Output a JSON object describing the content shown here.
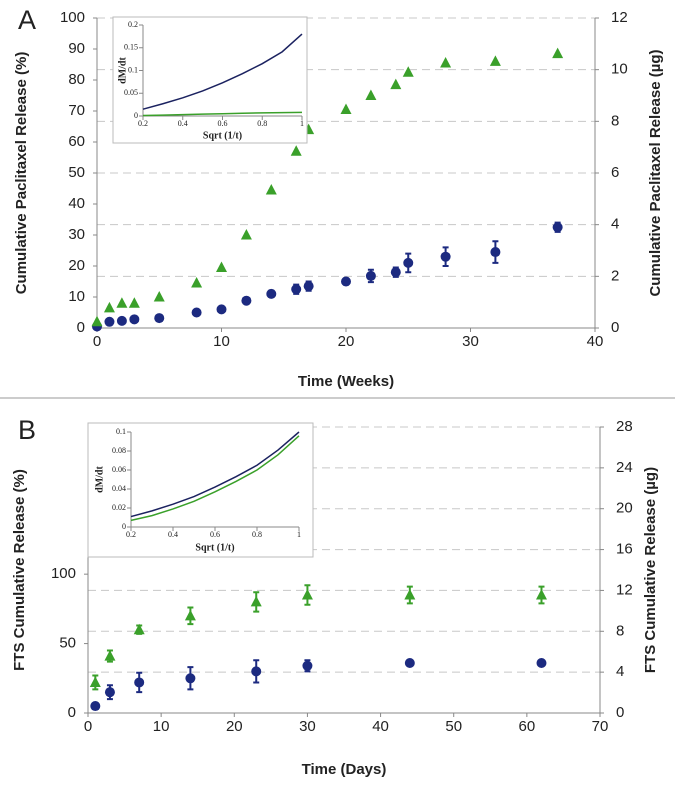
{
  "chart_data": [
    {
      "type": "scatter",
      "panel_label": "A",
      "xlabel": "Time  (Weeks)",
      "ylabel": "Cumulative Paclitaxel Release (%)",
      "y2label": "Cumulative Paclitaxel Release (µg)",
      "xlim": [
        0,
        40
      ],
      "xticks": [
        0,
        10,
        20,
        30,
        40
      ],
      "ylim": [
        0,
        100
      ],
      "yticks": [
        0,
        10,
        20,
        30,
        40,
        50,
        60,
        70,
        80,
        90,
        100
      ],
      "y2lim": [
        0,
        12
      ],
      "y2ticks": [
        0,
        2,
        4,
        6,
        8,
        10,
        12
      ],
      "grid": true,
      "x": [
        0,
        1,
        2,
        3,
        5,
        8,
        10,
        12,
        14,
        16,
        17,
        20,
        22,
        24,
        25,
        28,
        32,
        37
      ],
      "series": [
        {
          "color": "#1c2a80",
          "marker": "circle",
          "values": [
            0.5,
            2,
            2.3,
            2.8,
            3.2,
            5,
            6,
            8.8,
            11,
            12.5,
            13.5,
            15,
            16.8,
            18,
            21,
            23,
            24.5,
            32.5
          ],
          "errors": [
            0,
            0,
            0,
            0,
            0,
            0,
            0,
            0,
            1,
            1.5,
            1.5,
            1,
            2,
            1.5,
            3,
            3,
            3.5,
            1.5
          ]
        },
        {
          "color": "#3aa02a",
          "marker": "triangle",
          "values": [
            2,
            6.5,
            8,
            8,
            10,
            14.5,
            19.5,
            30,
            44.5,
            57,
            64,
            70.5,
            75,
            78.5,
            82.5,
            85.5,
            86,
            88.5
          ]
        }
      ]
    },
    {
      "type": "line",
      "xlabel": "Sqrt (1/t)",
      "ylabel": "dM/dt",
      "xlim": [
        0.2,
        1
      ],
      "xticks": [
        0.2,
        0.4,
        0.6,
        0.8,
        1
      ],
      "ylim": [
        0,
        0.2
      ],
      "yticks": [
        0,
        0.05,
        0.1,
        0.15,
        0.2
      ],
      "x": [
        0.2,
        0.3,
        0.4,
        0.5,
        0.6,
        0.7,
        0.8,
        0.9,
        1
      ],
      "series": [
        {
          "color": "#1b2260",
          "values": [
            0.015,
            0.027,
            0.04,
            0.055,
            0.073,
            0.093,
            0.115,
            0.141,
            0.18
          ]
        },
        {
          "color": "#3aa02a",
          "values": [
            0.001,
            0.002,
            0.003,
            0.004,
            0.005,
            0.006,
            0.007,
            0.0075,
            0.008
          ]
        }
      ]
    },
    {
      "type": "scatter",
      "panel_label": "B",
      "xlabel": "Time (Days)",
      "ylabel": "FTS Cumulative Release (%)",
      "y2label": "FTS Cumulative Release (µg)",
      "xlim": [
        0,
        70
      ],
      "xticks": [
        0,
        10,
        20,
        30,
        40,
        50,
        60,
        70
      ],
      "ylim": [
        0,
        206
      ],
      "yticks": [
        0,
        50,
        100
      ],
      "y2lim": [
        0,
        28
      ],
      "y2ticks": [
        0,
        4,
        8,
        12,
        16,
        20,
        24,
        28
      ],
      "grid": true,
      "x": [
        1,
        3,
        7,
        14,
        23,
        30,
        44,
        62
      ],
      "series": [
        {
          "color": "#1c2a80",
          "marker": "circle",
          "values": [
            5,
            15,
            22,
            25,
            30,
            34,
            36,
            36
          ],
          "errors": [
            2,
            5,
            7,
            8,
            8,
            4,
            0,
            0
          ]
        },
        {
          "color": "#3aa02a",
          "marker": "triangle",
          "values": [
            22,
            41,
            60,
            70,
            80,
            85,
            85,
            85
          ],
          "errors": [
            5,
            4,
            3,
            6,
            7,
            7,
            6,
            6
          ]
        }
      ]
    },
    {
      "type": "line",
      "xlabel": "Sqrt (1/t)",
      "ylabel": "dM/dt",
      "xlim": [
        0.2,
        1
      ],
      "xticks": [
        0.2,
        0.4,
        0.6,
        0.8,
        1
      ],
      "ylim": [
        0,
        0.1
      ],
      "yticks": [
        0,
        0.02,
        0.04,
        0.06,
        0.08,
        0.1
      ],
      "x": [
        0.2,
        0.3,
        0.4,
        0.5,
        0.6,
        0.7,
        0.8,
        0.9,
        1
      ],
      "series": [
        {
          "color": "#1b2260",
          "values": [
            0.011,
            0.017,
            0.024,
            0.032,
            0.042,
            0.053,
            0.065,
            0.081,
            0.1
          ]
        },
        {
          "color": "#3aa02a",
          "values": [
            0.007,
            0.012,
            0.019,
            0.027,
            0.037,
            0.048,
            0.06,
            0.076,
            0.096
          ]
        }
      ]
    }
  ]
}
